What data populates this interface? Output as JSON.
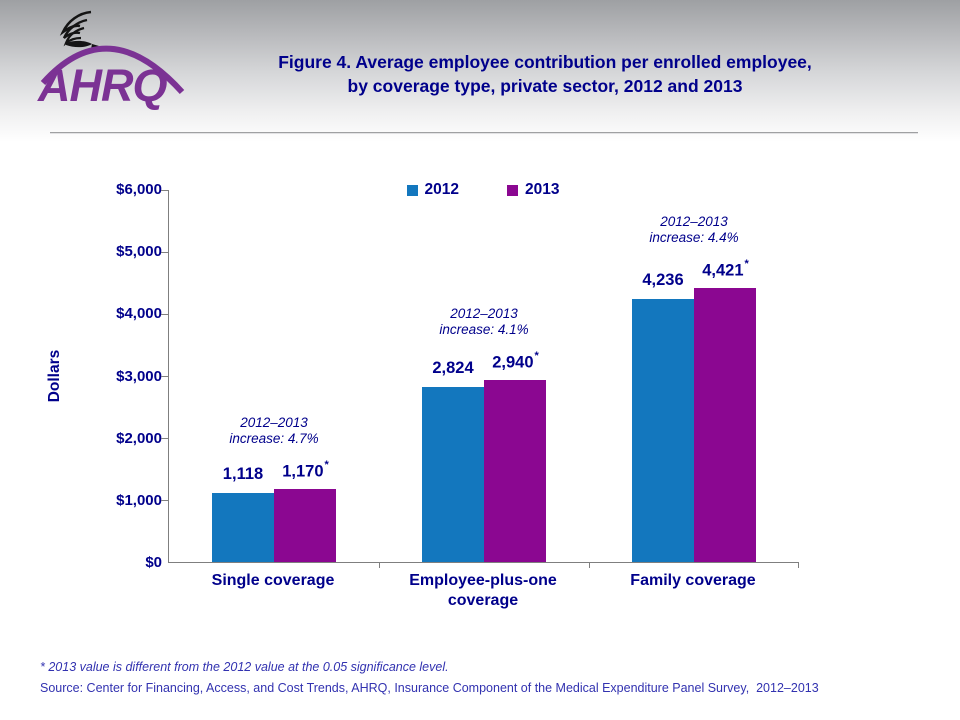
{
  "header": {
    "logo_text": "AHRQ",
    "title_line1": "Figure 4. Average employee contribution per enrolled employee,",
    "title_line2": "by coverage type, private sector, 2012 and 2013"
  },
  "chart_data": {
    "type": "bar",
    "title": "Figure 4. Average employee contribution per enrolled employee, by coverage type, private sector, 2012 and 2013",
    "xlabel": "",
    "ylabel": "Dollars",
    "ylim": [
      0,
      6000
    ],
    "ytick_interval": 1000,
    "yticks_top_to_bottom": [
      "$6,000",
      "$5,000",
      "$4,000",
      "$3,000",
      "$2,000",
      "$1,000",
      "$0"
    ],
    "grid": false,
    "legend_position": "top-center",
    "categories": [
      "Single coverage",
      "Employee-plus-one coverage",
      "Family coverage"
    ],
    "series": [
      {
        "name": "2012",
        "color": "#1377be",
        "values": [
          1118,
          2824,
          4236
        ],
        "value_labels": [
          "1,118",
          "2,824",
          "4,236"
        ]
      },
      {
        "name": "2013",
        "color": "#8b0791",
        "values": [
          1170,
          2940,
          4421
        ],
        "value_labels": [
          "1,170",
          "2,940",
          "4,421"
        ],
        "starred": true
      }
    ],
    "star_symbol": "*",
    "annotations": [
      {
        "line1": "2012–2013",
        "line2": "increase: 4.7%"
      },
      {
        "line1": "2012–2013",
        "line2": "increase: 4.1%"
      },
      {
        "line1": "2012–2013",
        "line2": "increase: 4.4%"
      }
    ]
  },
  "footnotes": {
    "significance": "* 2013 value is different from the 2012 value at the 0.05 significance level.",
    "source": "Source: Center for Financing, Access, and Cost Trends, AHRQ, Insurance Component of the Medical Expenditure Panel Survey,  2012–2013"
  },
  "colors": {
    "title_text": "#00008b",
    "axis_text": "#00008b",
    "footnote_text": "#3232b0",
    "logo_purple": "#7b3294",
    "bar_2012": "#1377be",
    "bar_2013": "#8b0791",
    "axis_line": "#7f7f7f",
    "divider": "#9fa0a2"
  }
}
